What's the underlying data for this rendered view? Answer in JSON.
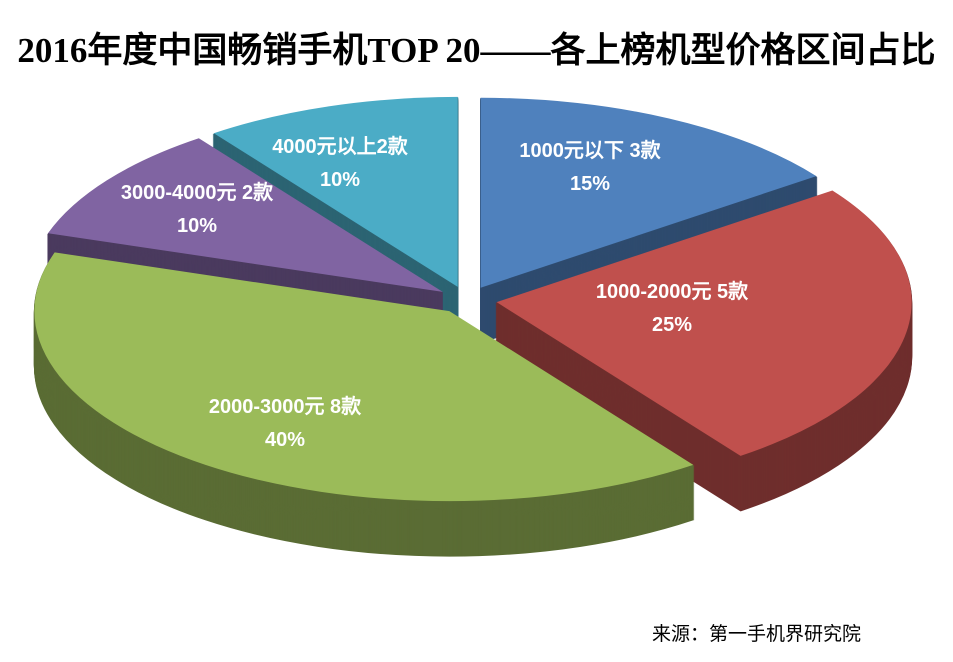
{
  "title": "2016年度中国畅销手机TOP 20——各上榜机型价格区间占比",
  "source": "来源：第一手机界研究院",
  "chart_data": {
    "type": "pie",
    "style": "3d-exploded",
    "title": "2016年度中国畅销手机TOP 20——各上榜机型价格区间占比",
    "direction": "clockwise",
    "start_angle_deg": 0,
    "background": "#FFFFFF",
    "label_color": "#FFFFFF",
    "legend": "none",
    "slices": [
      {
        "label": "1000元以下 3款",
        "count": 3,
        "value": 15,
        "percent_label": "15%",
        "color": "#4F81BD"
      },
      {
        "label": "1000-2000元 5款",
        "count": 5,
        "value": 25,
        "percent_label": "25%",
        "color": "#C0504D"
      },
      {
        "label": "2000-3000元 8款",
        "count": 8,
        "value": 40,
        "percent_label": "40%",
        "color": "#9BBB59"
      },
      {
        "label": "3000-4000元 2款",
        "count": 2,
        "value": 10,
        "percent_label": "10%",
        "color": "#8064A2"
      },
      {
        "label": "4000元以上2款",
        "count": 2,
        "value": 10,
        "percent_label": "10%",
        "color": "#4BACC6"
      }
    ]
  }
}
